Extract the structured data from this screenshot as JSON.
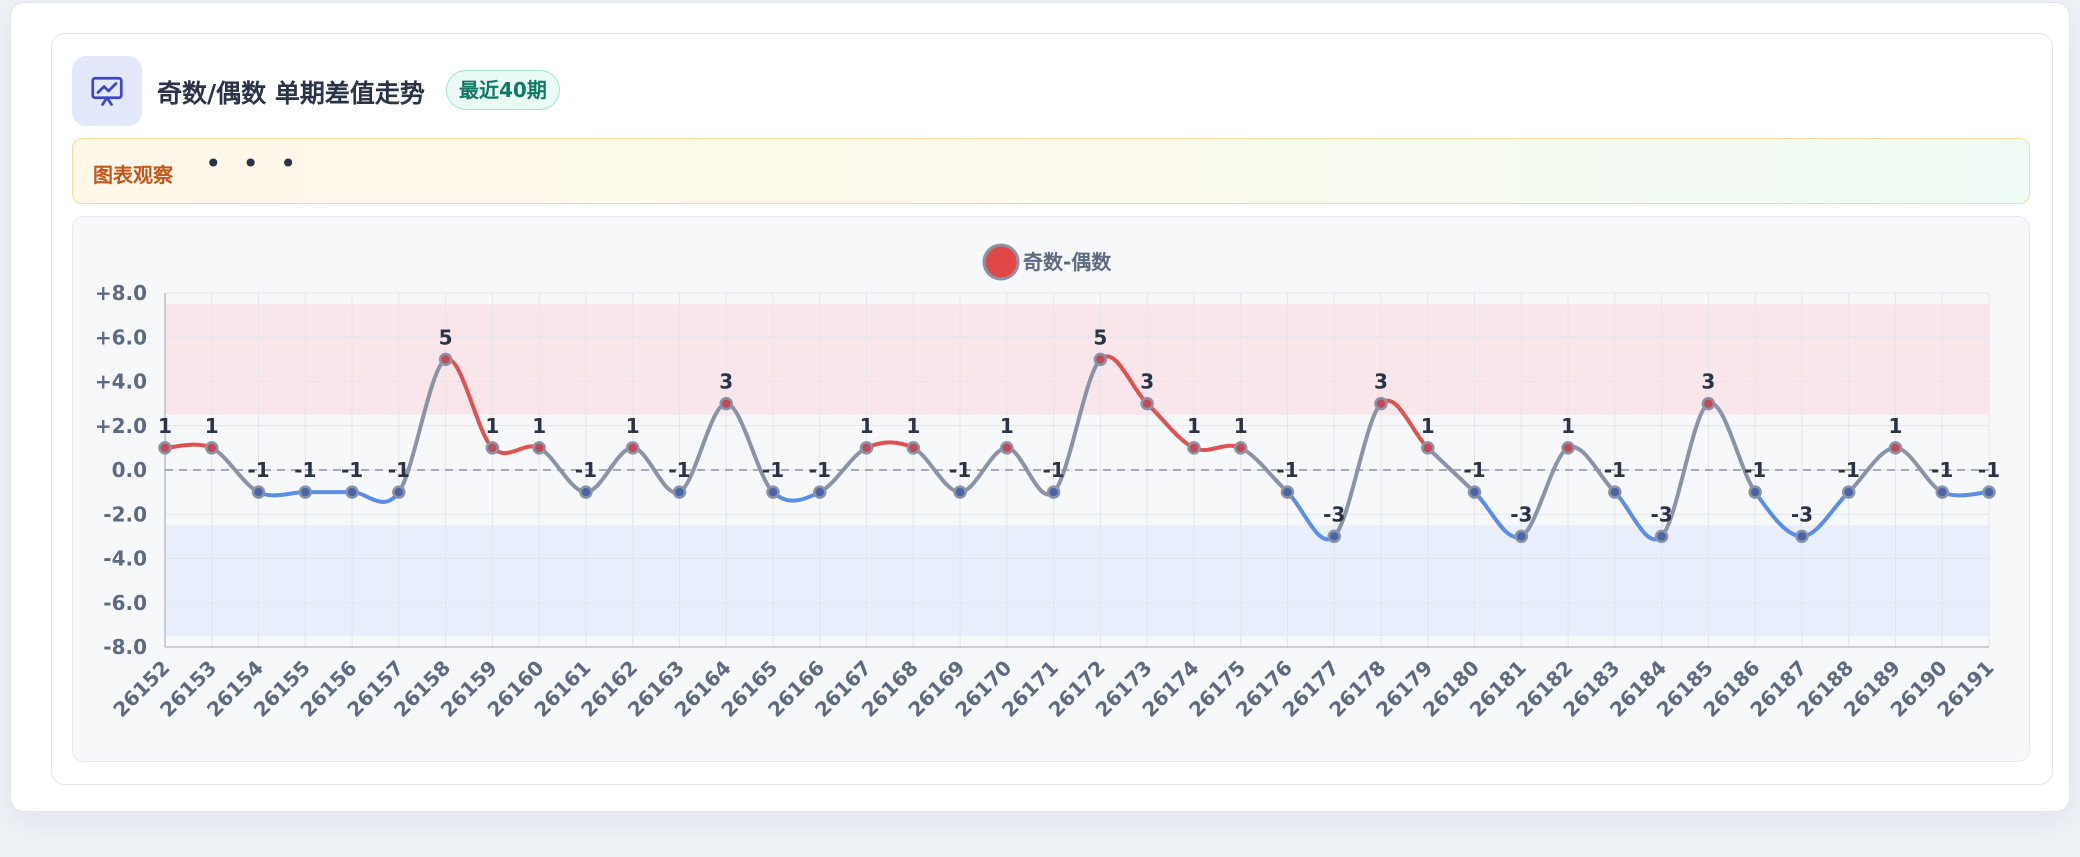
{
  "header": {
    "title": "奇数/偶数 单期差值走势",
    "badge": "最近40期",
    "icon": "presentation-chart-icon"
  },
  "observation": {
    "label": "图表观察",
    "dots": "• • •"
  },
  "colors": {
    "positive": "#e05252",
    "negative": "#5b8ee6",
    "neutral": "#8a94a6",
    "upper_band": "#f8e6ea",
    "lower_band": "#e8eefb"
  },
  "chart_data": {
    "type": "line",
    "legend": [
      "奇数-偶数"
    ],
    "x": [
      "26152",
      "26153",
      "26154",
      "26155",
      "26156",
      "26157",
      "26158",
      "26159",
      "26160",
      "26161",
      "26162",
      "26163",
      "26164",
      "26165",
      "26166",
      "26167",
      "26168",
      "26169",
      "26170",
      "26171",
      "26172",
      "26173",
      "26174",
      "26175",
      "26176",
      "26177",
      "26178",
      "26179",
      "26180",
      "26181",
      "26182",
      "26183",
      "26184",
      "26185",
      "26186",
      "26187",
      "26188",
      "26189",
      "26190",
      "26191"
    ],
    "series": [
      {
        "name": "奇数-偶数",
        "values": [
          1,
          1,
          -1,
          -1,
          -1,
          -1,
          5,
          1,
          1,
          -1,
          1,
          -1,
          3,
          -1,
          -1,
          1,
          1,
          -1,
          1,
          -1,
          5,
          3,
          1,
          1,
          -1,
          -3,
          3,
          1,
          -1,
          -3,
          1,
          -1,
          -3,
          3,
          -1,
          -3,
          -1,
          1,
          -1,
          -1
        ]
      }
    ],
    "ylim": [
      -8,
      8
    ],
    "yticks": [
      "+8.0",
      "+6.0",
      "+4.0",
      "+2.0",
      "0.0",
      "-2.0",
      "-4.0",
      "-6.0",
      "-8.0"
    ],
    "bands": [
      {
        "from": 2.5,
        "to": 7.5,
        "tone": "positive"
      },
      {
        "from": -7.5,
        "to": -2.5,
        "tone": "negative"
      }
    ],
    "reference_line": 0,
    "grid": true,
    "legend_position": "top-center"
  }
}
